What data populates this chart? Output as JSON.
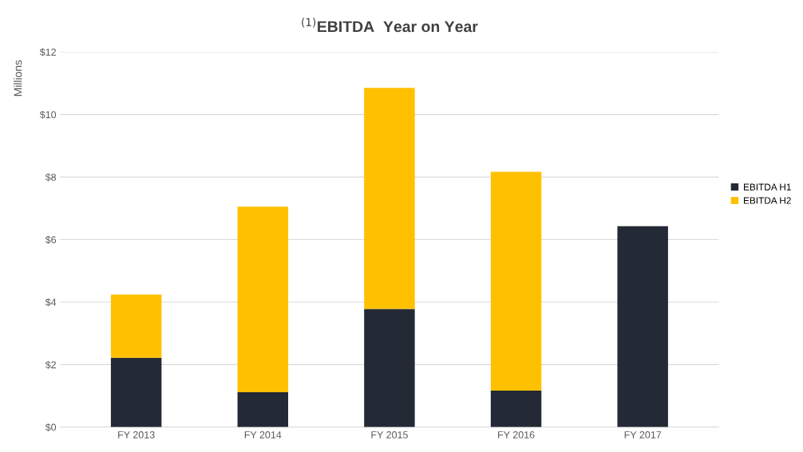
{
  "chart_data": {
    "type": "bar",
    "title": "$^{(1)}$EBITDA  Year on Year",
    "ylabel": "Millions",
    "categories": [
      "FY 2013",
      "FY 2014",
      "FY 2015",
      "FY 2016",
      "FY 2017"
    ],
    "stacked": true,
    "series": [
      {
        "name": "EBITDA H1",
        "color": "#232a35",
        "values": [
          2.22,
          1.12,
          3.78,
          1.17,
          6.43
        ]
      },
      {
        "name": "EBITDA H2",
        "color": "#ffc000",
        "values": [
          2.02,
          5.93,
          7.07,
          7.0,
          null
        ]
      }
    ],
    "ylim": [
      0,
      12
    ],
    "yticks": [
      {
        "value": 0,
        "label": "$0"
      },
      {
        "value": 2,
        "label": "$2"
      },
      {
        "value": 4,
        "label": "$4"
      },
      {
        "value": 6,
        "label": "$6"
      },
      {
        "value": 8,
        "label": "$8"
      },
      {
        "value": 10,
        "label": "$10"
      },
      {
        "value": 12,
        "label": "$12"
      }
    ],
    "grid": "y",
    "legend": "right"
  }
}
